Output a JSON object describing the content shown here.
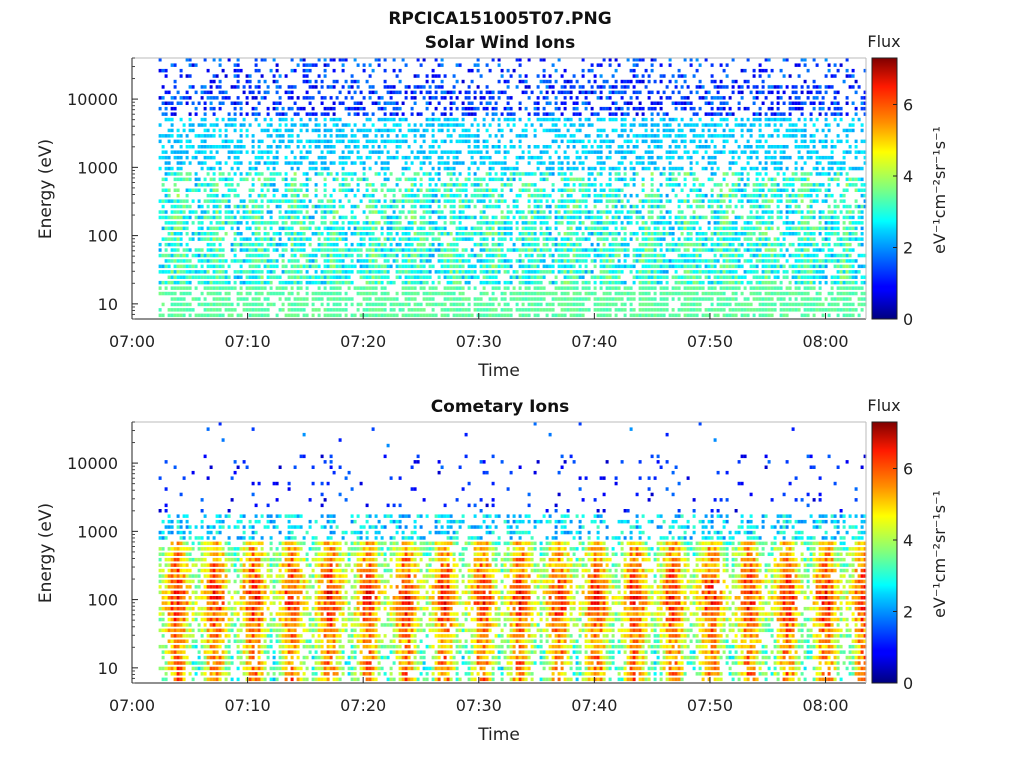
{
  "figure": {
    "title": "RPCICA151005T07.PNG"
  },
  "chart_data": [
    {
      "type": "heatmap",
      "title": "Solar Wind Ions",
      "xlabel": "Time",
      "ylabel": "Energy (eV)",
      "x_ticks": [
        "07:00",
        "07:10",
        "07:20",
        "07:30",
        "07:40",
        "07:50",
        "08:00"
      ],
      "x_range_minutes": [
        0,
        63.5
      ],
      "data_start_minute": 2.3,
      "y_scale": "log",
      "y_ticks": [
        10,
        100,
        1000,
        10000
      ],
      "y_tick_labels": [
        "10",
        "100",
        "1000",
        "10000"
      ],
      "ylim": [
        6,
        40000
      ],
      "colorbar": {
        "label": "Flux",
        "unit_label": "eV⁻¹cm⁻²sr⁻¹s⁻¹",
        "range": [
          0,
          7.3
        ],
        "ticks": [
          0,
          2,
          4,
          6
        ],
        "colormap": "jet"
      },
      "grid": false
    },
    {
      "type": "heatmap",
      "title": "Cometary Ions",
      "xlabel": "Time",
      "ylabel": "Energy (eV)",
      "x_ticks": [
        "07:00",
        "07:10",
        "07:20",
        "07:30",
        "07:40",
        "07:50",
        "08:00"
      ],
      "x_range_minutes": [
        0,
        63.5
      ],
      "data_start_minute": 2.3,
      "y_scale": "log",
      "y_ticks": [
        10,
        100,
        1000,
        10000
      ],
      "y_tick_labels": [
        "10",
        "100",
        "1000",
        "10000"
      ],
      "ylim": [
        6,
        40000
      ],
      "colorbar": {
        "label": "Flux",
        "unit_label": "eV⁻¹cm⁻²sr⁻¹s⁻¹",
        "range": [
          0,
          7.3
        ],
        "ticks": [
          0,
          2,
          4,
          6
        ],
        "colormap": "jet"
      },
      "grid": false,
      "burst_period_minutes": 3.3
    }
  ]
}
